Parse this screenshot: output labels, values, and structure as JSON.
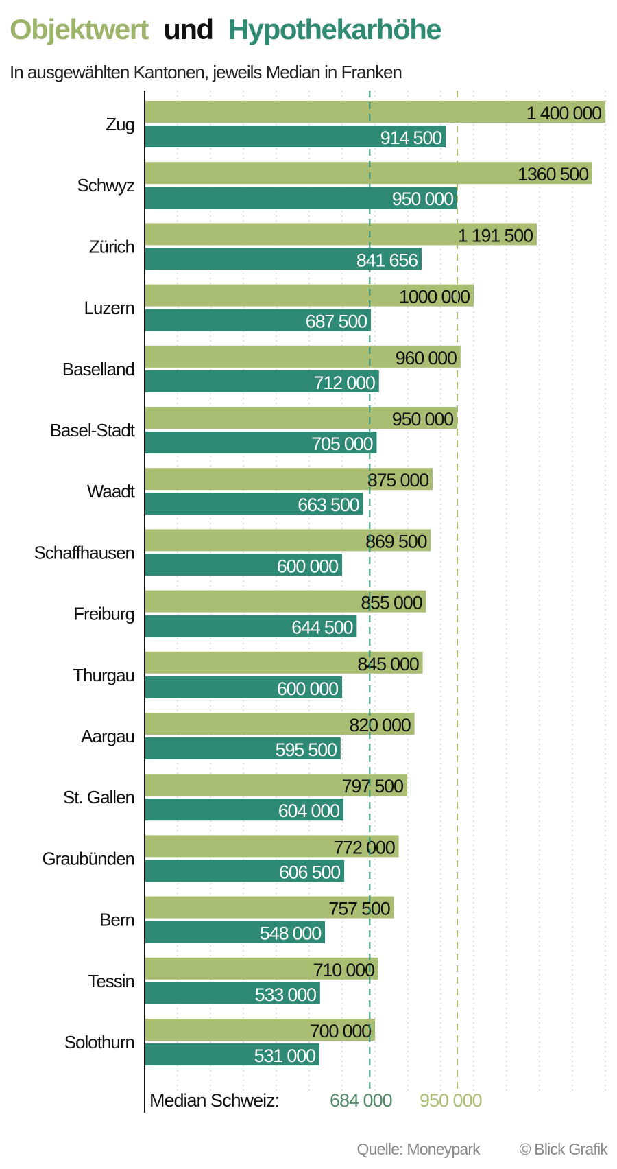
{
  "chart_data": {
    "type": "bar",
    "orientation": "horizontal",
    "title_parts": [
      {
        "text": "Objektwert",
        "color": "#9db56a"
      },
      {
        "text": "und",
        "color": "#111111"
      },
      {
        "text": "Hypothekarhöhe",
        "color": "#2f8a74"
      }
    ],
    "subtitle": "In ausgewählten Kantonen, jeweils Median in Franken",
    "categories": [
      "Zug",
      "Schwyz",
      "Zürich",
      "Luzern",
      "Baselland",
      "Basel-Stadt",
      "Waadt",
      "Schaffhausen",
      "Freiburg",
      "Thurgau",
      "Aargau",
      "St. Gallen",
      "Graubünden",
      "Bern",
      "Tessin",
      "Solothurn"
    ],
    "series": [
      {
        "key": "objektwert",
        "color": "#a9bd73",
        "label_color": "#111111",
        "values": [
          1400000,
          1360500,
          1191500,
          1000000,
          960000,
          950000,
          875000,
          869500,
          855000,
          845000,
          820000,
          797500,
          772000,
          757500,
          710000,
          700000
        ],
        "labels": [
          "1 400 000",
          "1360 500",
          "1 191 500",
          "1000 000",
          "960 000",
          "950 000",
          "875 000",
          "869 500",
          "855 000",
          "845 000",
          "820 000",
          "797 500",
          "772 000",
          "757 500",
          "710 000",
          "700 000"
        ]
      },
      {
        "key": "hypothekarhoehe",
        "color": "#2e8a74",
        "label_color": "#ffffff",
        "values": [
          914500,
          950000,
          841656,
          687500,
          712000,
          705000,
          663500,
          600000,
          644500,
          600000,
          595500,
          604000,
          606500,
          548000,
          533000,
          531000
        ],
        "labels": [
          "914 500",
          "950 000",
          "841 656",
          "687 500",
          "712 000",
          "705 000",
          "663 500",
          "600 000",
          "644 500",
          "600 000",
          "595 500",
          "604 000",
          "606 500",
          "548 000",
          "533 000",
          "531 000"
        ]
      }
    ],
    "xlim": [
      0,
      1400000
    ],
    "grid": {
      "on": true,
      "step": 100000,
      "style": "dotted"
    },
    "reference_lines": [
      {
        "value": 684000,
        "color": "#2e8a74",
        "label": "684 000"
      },
      {
        "value": 950000,
        "color": "#a9bd73",
        "label": "950 000"
      }
    ],
    "reference_caption": "Median Schweiz:",
    "source": "Quelle: Moneypark",
    "credit": "© Blick Grafik"
  }
}
